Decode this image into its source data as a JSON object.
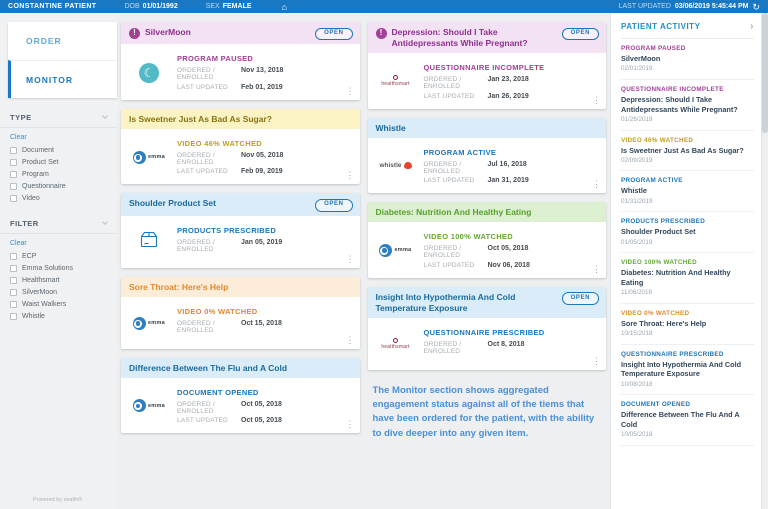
{
  "topbar": {
    "patient_name": "CONSTANTINE PATIENT",
    "dob_label": "DOB",
    "dob_value": "01/01/1992",
    "sex_label": "SEX",
    "sex_value": "FEMALE",
    "last_updated_label": "LAST UPDATED",
    "last_updated_value": "03/06/2019  5:45:44 PM"
  },
  "icons": {
    "home": "⌂",
    "refresh": "↻",
    "kebab": "⋮",
    "chevron_right": "›",
    "alert": "!",
    "moon": "☾"
  },
  "sidebar": {
    "tabs": [
      {
        "id": "order",
        "label": "ORDER",
        "active": false
      },
      {
        "id": "monitor",
        "label": "MONITOR",
        "active": true
      }
    ],
    "sections": [
      {
        "title": "TYPE",
        "clear_label": "Clear",
        "options": [
          "Document",
          "Product Set",
          "Program",
          "Questionnaire",
          "Video"
        ]
      },
      {
        "title": "FILTER",
        "clear_label": "Clear",
        "options": [
          "ECP",
          "Emma Solutions",
          "Healthsmart",
          "SilverMoon",
          "Waist Walkers",
          "Whistle"
        ]
      }
    ],
    "footer": "Powered by xealth®"
  },
  "labels": {
    "open": "OPEN",
    "ordered": "ORDERED / ENROLLED",
    "updated": "LAST UPDATED"
  },
  "logos": {
    "emma": "emma",
    "whistle": "whistle",
    "healthsmart": "healthsmart"
  },
  "columns": [
    [
      {
        "title": "SilverMoon",
        "theme": "purple",
        "alert": true,
        "open": true,
        "logo": "silvermoon",
        "status": "PROGRAM PAUSED",
        "ordered": "Nov 13, 2018",
        "updated": "Feb 01, 2019"
      },
      {
        "title": "Is Sweetner Just As Bad As Sugar?",
        "theme": "yellow",
        "alert": false,
        "open": false,
        "logo": "emma",
        "status": "VIDEO 46% WATCHED",
        "ordered": "Nov 05, 2018",
        "updated": "Feb 09, 2019"
      },
      {
        "title": "Shoulder Product Set",
        "theme": "blue",
        "alert": false,
        "open": true,
        "logo": "box",
        "status": "PRODUCTS PRESCRIBED",
        "ordered": "Jan 05, 2019",
        "updated": ""
      },
      {
        "title": "Sore Throat: Here's Help",
        "theme": "orange",
        "alert": false,
        "open": false,
        "logo": "emma",
        "status": "VIDEO 0% WATCHED",
        "ordered": "Oct 15, 2018",
        "updated": ""
      },
      {
        "title": "Difference Between The Flu and A Cold",
        "theme": "blue",
        "alert": false,
        "open": false,
        "logo": "emma",
        "status": "DOCUMENT OPENED",
        "ordered": "Oct 05, 2018",
        "updated": "Oct 05, 2018"
      }
    ],
    [
      {
        "title": "Depression: Should I Take Antidepressants While Pregnant?",
        "theme": "purple",
        "alert": true,
        "open": true,
        "logo": "healthsmart",
        "status": "QUESTIONNAIRE INCOMPLETE",
        "ordered": "Jan 23, 2018",
        "updated": "Jan 26, 2019"
      },
      {
        "title": "Whistle",
        "theme": "blue",
        "alert": false,
        "open": false,
        "logo": "whistle",
        "status": "PROGRAM ACTIVE",
        "ordered": "Jul 16, 2018",
        "updated": "Jan 31, 2019"
      },
      {
        "title": "Diabetes: Nutrition And Healthy Eating",
        "theme": "green",
        "alert": false,
        "open": false,
        "logo": "emma",
        "status": "VIDEO 100% WATCHED",
        "ordered": "Oct 05, 2018",
        "updated": "Nov 06, 2018"
      },
      {
        "title": "Insight Into Hypothermia And Cold Temperature Exposure",
        "theme": "blue",
        "alert": false,
        "open": true,
        "logo": "healthsmart",
        "status": "QUESTIONNAIRE PRESCRIBED",
        "ordered": "Oct 8, 2018",
        "updated": ""
      }
    ]
  ],
  "note": "The Monitor section shows aggregated engagement status against all of the tiems that have been ordered for the patient, with the ability to dive deeper into any given item.",
  "activity": {
    "title": "PATIENT ACTIVITY",
    "items": [
      {
        "status": "PROGRAM PAUSED",
        "theme": "purple",
        "title": "SilverMoon",
        "date": "02/01/2019"
      },
      {
        "status": "QUESTIONNAIRE INCOMPLETE",
        "theme": "purple",
        "title": "Depression: Should I Take Antidepressants While Pregnant?",
        "date": "01/26/2019"
      },
      {
        "status": "VIDEO 46% WATCHED",
        "theme": "yellow",
        "title": "Is Sweetner Just As Bad As Sugar?",
        "date": "02/09/2019"
      },
      {
        "status": "PROGRAM ACTIVE",
        "theme": "blue",
        "title": "Whistle",
        "date": "01/31/2019"
      },
      {
        "status": "PRODUCTS PRESCRIBED",
        "theme": "blue",
        "title": "Shoulder Product Set",
        "date": "01/05/2019"
      },
      {
        "status": "VIDEO 100% WATCHED",
        "theme": "green",
        "title": "Diabetes: Nutrition And Healthy Eating",
        "date": "11/06/2018"
      },
      {
        "status": "VIDEO 0% WATCHED",
        "theme": "orange",
        "title": "Sore Throat: Here's Help",
        "date": "10/15/2018"
      },
      {
        "status": "QUESTIONNAIRE PRESCRIBED",
        "theme": "blue",
        "title": "Insight Into Hypothermia And Cold Temperature Exposure",
        "date": "10/08/2018"
      },
      {
        "status": "DOCUMENT OPENED",
        "theme": "blue",
        "title": "Difference Between The Flu And A Cold",
        "date": "10/05/2018"
      }
    ]
  },
  "colors": {
    "topbar_blue": "#1a78c2",
    "status_purple": "#a23f97",
    "status_yellow": "#bf9d20",
    "status_blue": "#1b75bb",
    "status_green": "#63a834",
    "status_orange": "#e0882f",
    "activity_header_blue": "#1f8ec9"
  }
}
